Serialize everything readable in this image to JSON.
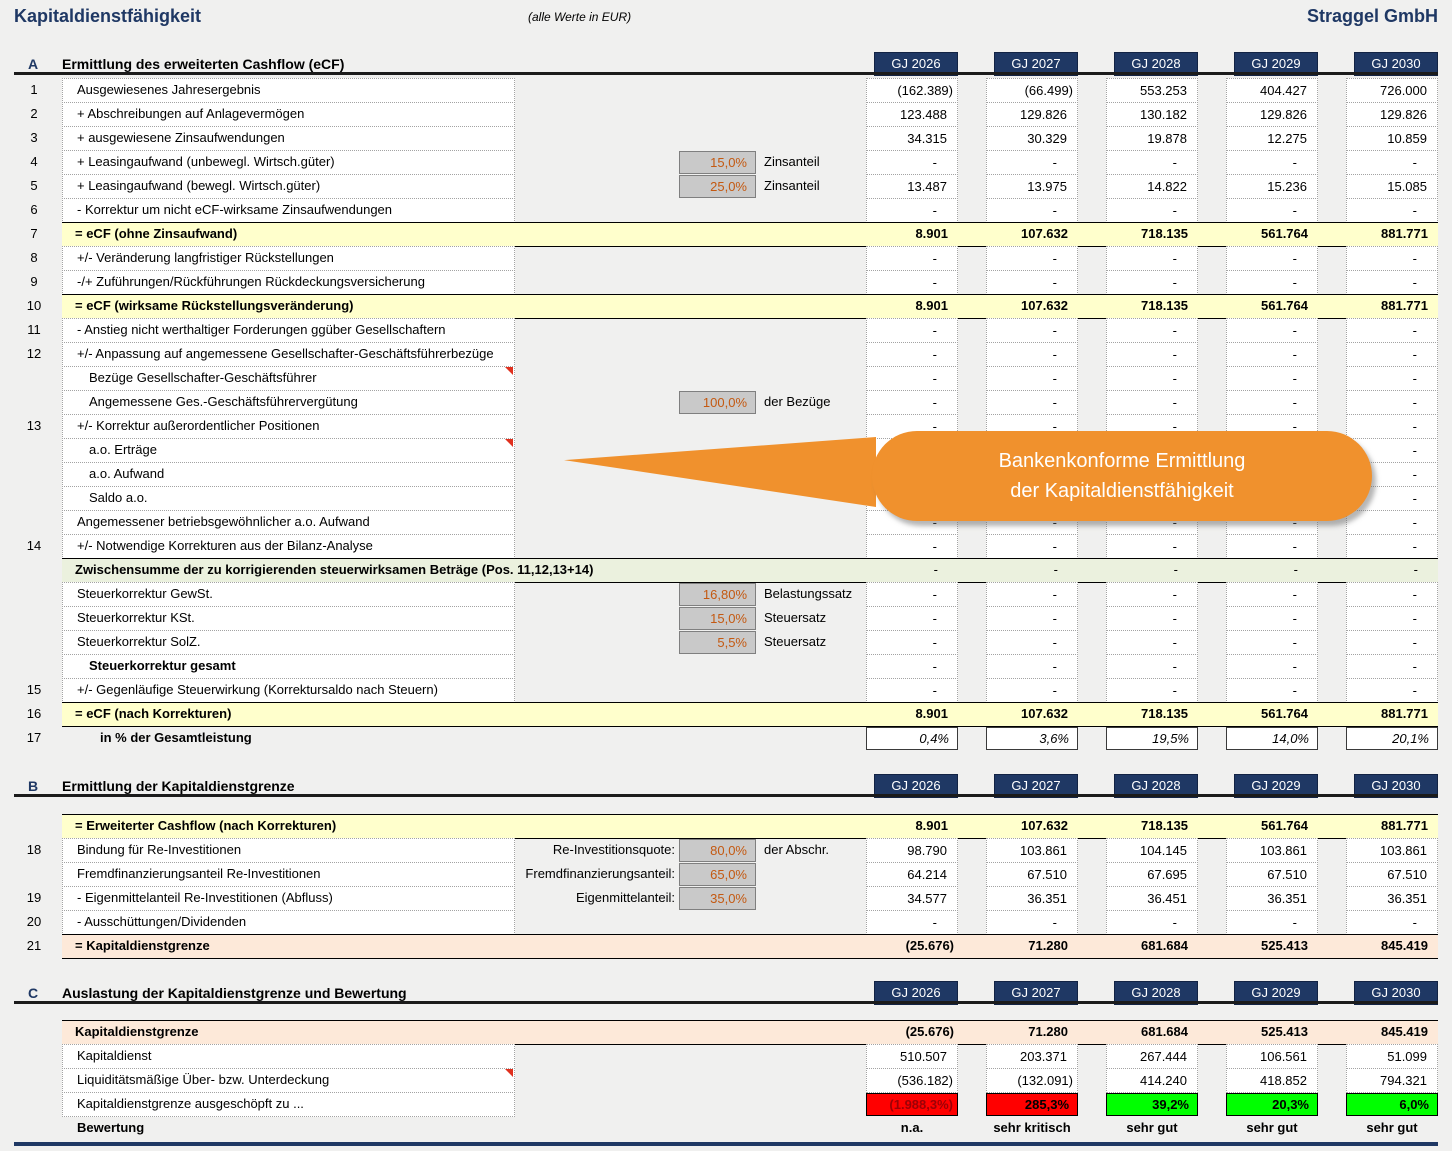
{
  "header": {
    "title": "Kapitaldienstfähigkeit",
    "subtitle": "(alle Werte in EUR)",
    "company": "Straggel GmbH"
  },
  "years": [
    "GJ 2026",
    "GJ 2027",
    "GJ 2028",
    "GJ 2029",
    "GJ 2030"
  ],
  "callout": {
    "line1": "Bankenkonforme Ermittlung",
    "line2": "der Kapitaldienstfähigkeit"
  },
  "colors": {
    "red": "#FF0000",
    "green": "#00FF00",
    "navy": "#1F3864",
    "orange": "#F0912D",
    "yellow_band": "#FFFFCC",
    "green_band": "#EBF1DE",
    "peach_band": "#FDE9D9",
    "percent_text": "#C45911"
  },
  "sections": [
    {
      "letter": "A",
      "title": "Ermittlung des erweiterten Cashflow (eCF)",
      "rows": [
        {
          "n": "1",
          "l": "Ausgewiesenes Jahresergebnis",
          "v": [
            "(162.389)",
            "(66.499)",
            "553.253",
            "404.427",
            "726.000"
          ]
        },
        {
          "n": "2",
          "l": "+ Abschreibungen auf Anlagevermögen",
          "v": [
            "123.488",
            "129.826",
            "130.182",
            "129.826",
            "129.826"
          ]
        },
        {
          "n": "3",
          "l": "+ ausgewiesene Zinsaufwendungen",
          "v": [
            "34.315",
            "30.329",
            "19.878",
            "12.275",
            "10.859"
          ]
        },
        {
          "n": "4",
          "l": "+ Leasingaufwand (unbewegl. Wirtsch.güter)",
          "mid": {
            "box": "15,0%",
            "suf": "Zinsanteil"
          },
          "v": [
            "-",
            "-",
            "-",
            "-",
            "-"
          ]
        },
        {
          "n": "5",
          "l": "+ Leasingaufwand (bewegl. Wirtsch.güter)",
          "mid": {
            "box": "25,0%",
            "suf": "Zinsanteil"
          },
          "v": [
            "13.487",
            "13.975",
            "14.822",
            "15.236",
            "15.085"
          ]
        },
        {
          "n": "6",
          "l": "- Korrektur um nicht eCF-wirksame Zinsaufwendungen",
          "v": [
            "-",
            "-",
            "-",
            "-",
            "-"
          ]
        },
        {
          "n": "7",
          "band": "yellow",
          "l": "= eCF (ohne Zinsaufwand)",
          "v": [
            "8.901",
            "107.632",
            "718.135",
            "561.764",
            "881.771"
          ]
        },
        {
          "n": "8",
          "l": "+/- Veränderung langfristiger Rückstellungen",
          "v": [
            "-",
            "-",
            "-",
            "-",
            "-"
          ]
        },
        {
          "n": "9",
          "l": "-/+ Zuführungen/Rückführungen Rückdeckungsversicherung",
          "v": [
            "-",
            "-",
            "-",
            "-",
            "-"
          ]
        },
        {
          "n": "10",
          "band": "yellow",
          "l": "= eCF (wirksame Rückstellungsveränderung)",
          "v": [
            "8.901",
            "107.632",
            "718.135",
            "561.764",
            "881.771"
          ]
        },
        {
          "n": "11",
          "l": "- Anstieg nicht werthaltiger Forderungen ggüber Gesellschaftern",
          "v": [
            "-",
            "-",
            "-",
            "-",
            "-"
          ]
        },
        {
          "n": "12",
          "l": "+/- Anpassung auf angemessene Gesellschafter-Geschäftsführerbezüge",
          "v": [
            "-",
            "-",
            "-",
            "-",
            "-"
          ]
        },
        {
          "l": "Bezüge Gesellschafter-Geschäftsführer",
          "ind": 2,
          "comment": true,
          "v": [
            "-",
            "-",
            "-",
            "-",
            "-"
          ]
        },
        {
          "l": "Angemessene Ges.-Geschäftsführervergütung",
          "ind": 2,
          "mid": {
            "box": "100,0%",
            "suf": "der Bezüge"
          },
          "v": [
            "-",
            "-",
            "-",
            "-",
            "-"
          ]
        },
        {
          "n": "13",
          "l": "+/- Korrektur außerordentlicher Positionen",
          "v": [
            "-",
            "-",
            "-",
            "-",
            "-"
          ]
        },
        {
          "l": "a.o. Erträge",
          "ind": 2,
          "comment": true,
          "v": [
            "-",
            "-",
            "-",
            "-",
            "-"
          ]
        },
        {
          "l": "a.o. Aufwand",
          "ind": 2,
          "v": [
            "-",
            "-",
            "-",
            "-",
            "-"
          ]
        },
        {
          "l": "Saldo a.o.",
          "ind": 2,
          "v": [
            "-",
            "-",
            "-",
            "-",
            "-"
          ]
        },
        {
          "l": "Angemessener betriebsgewöhnlicher a.o. Aufwand",
          "v": [
            "-",
            "-",
            "-",
            "-",
            "-"
          ]
        },
        {
          "n": "14",
          "l": "+/- Notwendige Korrekturen aus der Bilanz-Analyse",
          "v": [
            "-",
            "-",
            "-",
            "-",
            "-"
          ]
        },
        {
          "band": "green",
          "l": "Zwischensumme der zu korrigierenden steuerwirksamen Beträge (Pos. 11,12,13+14)",
          "v": [
            "-",
            "-",
            "-",
            "-",
            "-"
          ]
        },
        {
          "l": "Steuerkorrektur GewSt.",
          "mid": {
            "box": "16,80%",
            "suf": "Belastungssatz"
          },
          "v": [
            "-",
            "-",
            "-",
            "-",
            "-"
          ]
        },
        {
          "l": "Steuerkorrektur KSt.",
          "mid": {
            "box": "15,0%",
            "suf": "Steuersatz"
          },
          "v": [
            "-",
            "-",
            "-",
            "-",
            "-"
          ]
        },
        {
          "l": "Steuerkorrektur SolZ.",
          "mid": {
            "box": "5,5%",
            "suf": "Steuersatz"
          },
          "v": [
            "-",
            "-",
            "-",
            "-",
            "-"
          ]
        },
        {
          "l": "Steuerkorrektur gesamt",
          "ind": 2,
          "bold": true,
          "v": [
            "-",
            "-",
            "-",
            "-",
            "-"
          ]
        },
        {
          "n": "15",
          "l": "+/- Gegenläufige Steuerwirkung (Korrektursaldo nach Steuern)",
          "v": [
            "-",
            "-",
            "-",
            "-",
            "-"
          ]
        },
        {
          "n": "16",
          "band": "yellow",
          "l": "= eCF (nach Korrekturen)",
          "v": [
            "8.901",
            "107.632",
            "718.135",
            "561.764",
            "881.771"
          ]
        },
        {
          "n": "17",
          "l": "in % der Gesamtleistung",
          "ind": 3,
          "bold": true,
          "nocell": true,
          "vs": "boxed",
          "v": [
            "0,4%",
            "3,6%",
            "19,5%",
            "14,0%",
            "20,1%"
          ]
        }
      ]
    },
    {
      "letter": "B",
      "title": "Ermittlung der Kapitaldienstgrenze",
      "rows": [
        {
          "band": "yellow",
          "l": "= Erweiterter Cashflow (nach Korrekturen)",
          "v": [
            "8.901",
            "107.632",
            "718.135",
            "561.764",
            "881.771"
          ]
        },
        {
          "n": "18",
          "l": "Bindung für Re-Investitionen",
          "mid": {
            "pre": "Re-Investitionsquote:",
            "box": "80,0%",
            "suf": "der Abschr."
          },
          "v": [
            "98.790",
            "103.861",
            "104.145",
            "103.861",
            "103.861"
          ]
        },
        {
          "l": "Fremdfinanzierungsanteil Re-Investitionen",
          "mid": {
            "pre": "Fremdfinanzierungsanteil:",
            "box": "65,0%"
          },
          "v": [
            "64.214",
            "67.510",
            "67.695",
            "67.510",
            "67.510"
          ]
        },
        {
          "n": "19",
          "l": "- Eigenmittelanteil Re-Investitionen (Abfluss)",
          "mid": {
            "pre": "Eigenmittelanteil:",
            "box": "35,0%"
          },
          "v": [
            "34.577",
            "36.351",
            "36.451",
            "36.351",
            "36.351"
          ]
        },
        {
          "n": "20",
          "l": "- Ausschüttungen/Dividenden",
          "v": [
            "-",
            "-",
            "-",
            "-",
            "-"
          ]
        },
        {
          "n": "21",
          "band": "peach",
          "l": "= Kapitaldienstgrenze",
          "v": [
            "(25.676)",
            "71.280",
            "681.684",
            "525.413",
            "845.419"
          ]
        }
      ]
    },
    {
      "letter": "C",
      "title": "Auslastung der Kapitaldienstgrenze und Bewertung",
      "rows": [
        {
          "band": "peach",
          "l": "Kapitaldienstgrenze",
          "v": [
            "(25.676)",
            "71.280",
            "681.684",
            "525.413",
            "845.419"
          ]
        },
        {
          "l": "Kapitaldienst",
          "v": [
            "510.507",
            "203.371",
            "267.444",
            "106.561",
            "51.099"
          ]
        },
        {
          "l": "Liquiditätsmäßige Über- bzw. Unterdeckung",
          "comment": true,
          "v": [
            "(536.182)",
            "(132.091)",
            "414.240",
            "418.852",
            "794.321"
          ]
        },
        {
          "l": "Kapitaldienstgrenze ausgeschöpft zu ...",
          "vs": "usage",
          "vc": [
            "red",
            "red",
            "green",
            "green",
            "green"
          ],
          "vtc": [
            "#9C0006",
            null,
            null,
            null,
            null
          ],
          "v": [
            "(1.988,3%)",
            "285,3%",
            "39,2%",
            "20,3%",
            "6,0%"
          ]
        },
        {
          "l": "Bewertung",
          "bold": true,
          "nocell": true,
          "vs": "rating",
          "v": [
            "n.a.",
            "sehr kritisch",
            "sehr gut",
            "sehr gut",
            "sehr gut"
          ]
        }
      ]
    }
  ]
}
